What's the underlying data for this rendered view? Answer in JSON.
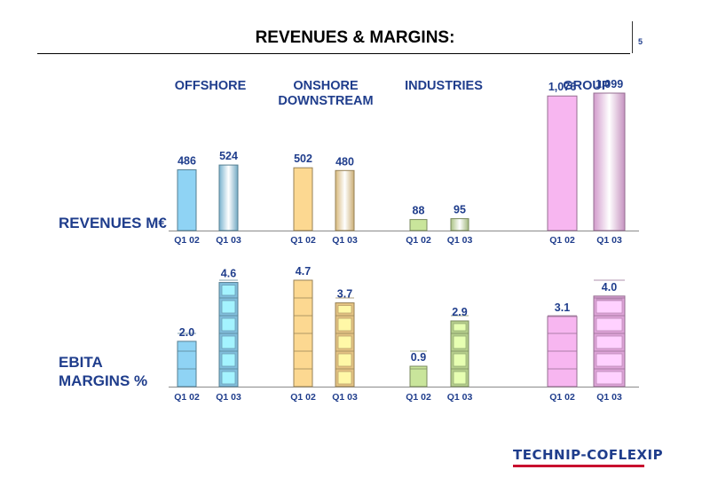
{
  "slide": {
    "title": "REVENUES & MARGINS:",
    "page_number": "5",
    "logo_text": "TECHNIP-COFLEXIP"
  },
  "rows": {
    "revenues_label": "REVENUES M€",
    "ebita_label_line1": "EBITA",
    "ebita_label_line2": "MARGINS %"
  },
  "chart_data": [
    {
      "type": "bar",
      "title": "REVENUES M€",
      "groups": [
        {
          "name": "OFFSHORE",
          "categories": [
            "Q1 02",
            "Q1 03"
          ],
          "values": [
            486,
            524
          ],
          "labels": [
            "486",
            "524"
          ],
          "color": "#8fd3f4"
        },
        {
          "name": "ONSHORE DOWNSTREAM",
          "categories": [
            "Q1 02",
            "Q1 03"
          ],
          "values": [
            502,
            480
          ],
          "labels": [
            "502",
            "480"
          ],
          "color": "#fcd891"
        },
        {
          "name": "INDUSTRIES",
          "categories": [
            "Q1 02",
            "Q1 03"
          ],
          "values": [
            88,
            95
          ],
          "labels": [
            "88",
            "95"
          ],
          "color": "#c9e59b"
        },
        {
          "name": "GROUP",
          "categories": [
            "Q1 02",
            "Q1 03"
          ],
          "values": [
            1076,
            1099
          ],
          "labels": [
            "1,076",
            "1,099"
          ],
          "color": "#f7b6f0"
        }
      ]
    },
    {
      "type": "bar",
      "title": "EBITA MARGINS %",
      "groups": [
        {
          "name": "OFFSHORE",
          "categories": [
            "Q1 02",
            "Q1 03"
          ],
          "values": [
            2.0,
            4.6
          ],
          "labels": [
            "2.0",
            "4.6"
          ],
          "color": "#8fd3f4"
        },
        {
          "name": "ONSHORE DOWNSTREAM",
          "categories": [
            "Q1 02",
            "Q1 03"
          ],
          "values": [
            4.7,
            3.7
          ],
          "labels": [
            "4.7",
            "3.7"
          ],
          "color": "#fcd891"
        },
        {
          "name": "INDUSTRIES",
          "categories": [
            "Q1 02",
            "Q1 03"
          ],
          "values": [
            0.9,
            2.9
          ],
          "labels": [
            "0.9",
            "2.9"
          ],
          "color": "#c9e59b"
        },
        {
          "name": "GROUP",
          "categories": [
            "Q1 02",
            "Q1 03"
          ],
          "values": [
            3.1,
            4.0
          ],
          "labels": [
            "3.1",
            "4.0"
          ],
          "color": "#f7b6f0"
        }
      ]
    }
  ],
  "group_titles": {
    "offshore": "OFFSHORE",
    "onshore_line1": "ONSHORE",
    "onshore_line2": "DOWNSTREAM",
    "industries": "INDUSTRIES",
    "group": "GROUP"
  }
}
